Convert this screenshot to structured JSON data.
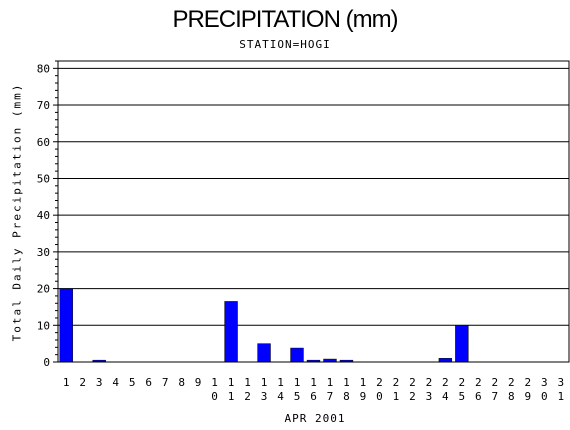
{
  "chart_data": {
    "type": "bar",
    "title": "PRECIPITATION (mm)",
    "subtitle": "STATION=HOGI",
    "ylabel": "Total Daily Precipitation (mm)",
    "xlabel": "APR 2001",
    "ylim": [
      0,
      82
    ],
    "yticks": [
      0,
      10,
      20,
      30,
      40,
      50,
      60,
      70,
      80
    ],
    "grid": true,
    "bar_color": "#0000ff",
    "categories": [
      "1",
      "2",
      "3",
      "4",
      "5",
      "6",
      "7",
      "8",
      "9",
      "10",
      "11",
      "12",
      "13",
      "14",
      "15",
      "16",
      "17",
      "18",
      "19",
      "20",
      "21",
      "22",
      "23",
      "24",
      "25",
      "26",
      "27",
      "28",
      "29",
      "30",
      "31"
    ],
    "values": [
      20,
      0,
      0.5,
      0,
      0,
      0,
      0,
      0,
      0,
      0,
      16.5,
      0,
      5,
      0,
      3.8,
      0.5,
      0.8,
      0.5,
      0,
      0,
      0,
      0,
      0,
      1,
      10,
      0,
      0,
      0,
      0,
      0,
      0
    ]
  }
}
